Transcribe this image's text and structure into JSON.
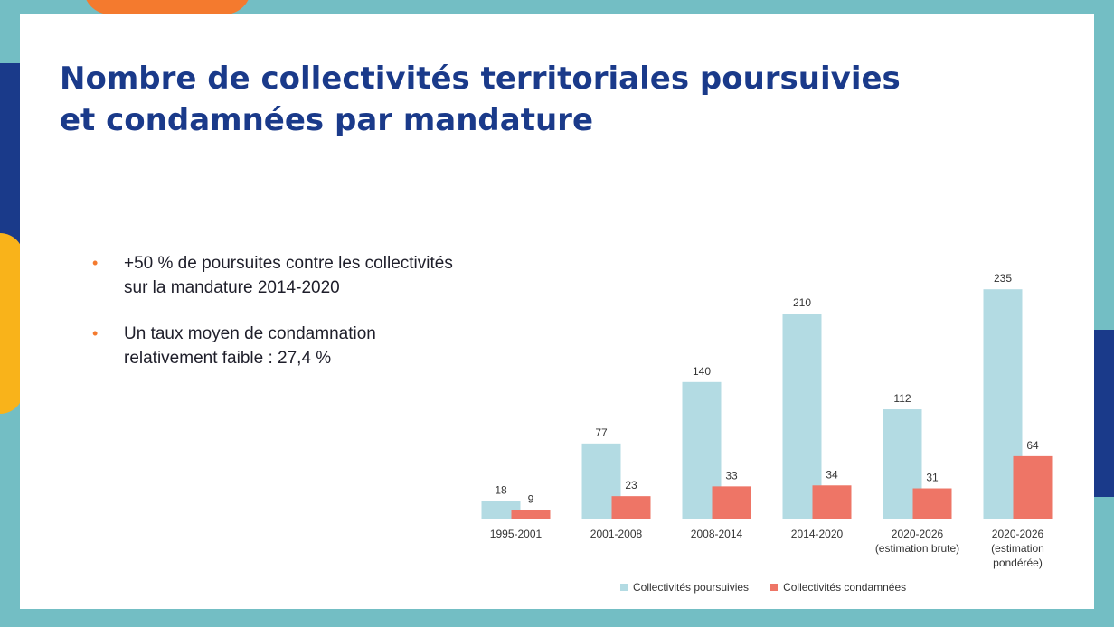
{
  "slide": {
    "title_lines": [
      "Nombre de collectivités territoriales poursuivies",
      "et condamnées par mandature"
    ],
    "bullets": [
      "+50 % de poursuites contre les collectivités sur la mandature 2014-2020",
      "Un taux moyen de condamnation relativement faible : 27,4 %"
    ]
  },
  "colors": {
    "poursuivies": "#b3dbe3",
    "condamnees": "#ee7566",
    "title": "#1a3a8a",
    "bullet": "#f47a2e"
  },
  "chart_data": {
    "type": "bar",
    "categories": [
      [
        "1995-2001"
      ],
      [
        "2001-2008"
      ],
      [
        "2008-2014"
      ],
      [
        "2014-2020"
      ],
      [
        "2020-2026",
        "(estimation brute)"
      ],
      [
        "2020-2026",
        "(estimation",
        "pondérée)"
      ]
    ],
    "series": [
      {
        "name": "Collectivités poursuivies",
        "values": [
          18,
          77,
          140,
          210,
          112,
          235
        ]
      },
      {
        "name": "Collectivités condamnées",
        "values": [
          9,
          23,
          33,
          34,
          31,
          64
        ]
      }
    ],
    "ylim": [
      0,
      250
    ],
    "grid": false,
    "legend_position": "bottom"
  }
}
